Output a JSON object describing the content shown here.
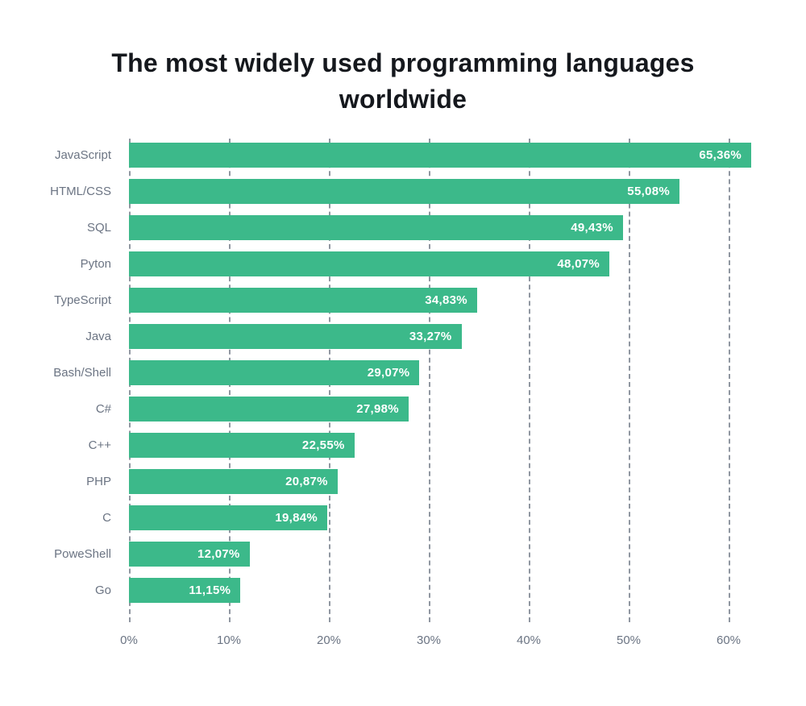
{
  "title": "The most widely used programming languages worldwide",
  "colors": {
    "background": "#ffffff",
    "bar": "#3cb98a",
    "bar_value_text": "#ffffff",
    "category_label": "#6b7483",
    "gridline": "#9097a1",
    "tick_label": "#6b7483",
    "title_text": "#15181d"
  },
  "chart_data": {
    "type": "bar",
    "orientation": "horizontal",
    "title": "The most widely used programming languages worldwide",
    "xlabel": "",
    "ylabel": "",
    "categories": [
      "JavaScript",
      "HTML/CSS",
      "SQL",
      "Pyton",
      "TypeScript",
      "Java",
      "Bash/Shell",
      "C#",
      "C++",
      "PHP",
      "C",
      "PoweShell",
      "Go"
    ],
    "values": [
      65.36,
      55.08,
      49.43,
      48.07,
      34.83,
      33.27,
      29.07,
      27.98,
      22.55,
      20.87,
      19.84,
      12.07,
      11.15
    ],
    "value_labels": [
      "65,36%",
      "55,08%",
      "49,43%",
      "48,07%",
      "34,83%",
      "33,27%",
      "29,07%",
      "27,98%",
      "22,55%",
      "20,87%",
      "19,84%",
      "12,07%",
      "11,15%"
    ],
    "x_ticks": [
      "0%",
      "10%",
      "20%",
      "30%",
      "40%",
      "50%",
      "60%"
    ],
    "x_tick_values": [
      0,
      10,
      20,
      30,
      40,
      50,
      60
    ],
    "xlim": [
      0,
      62.5
    ],
    "grid": "dashed-vertical",
    "legend": "none",
    "value_label_position": "inside-end"
  }
}
